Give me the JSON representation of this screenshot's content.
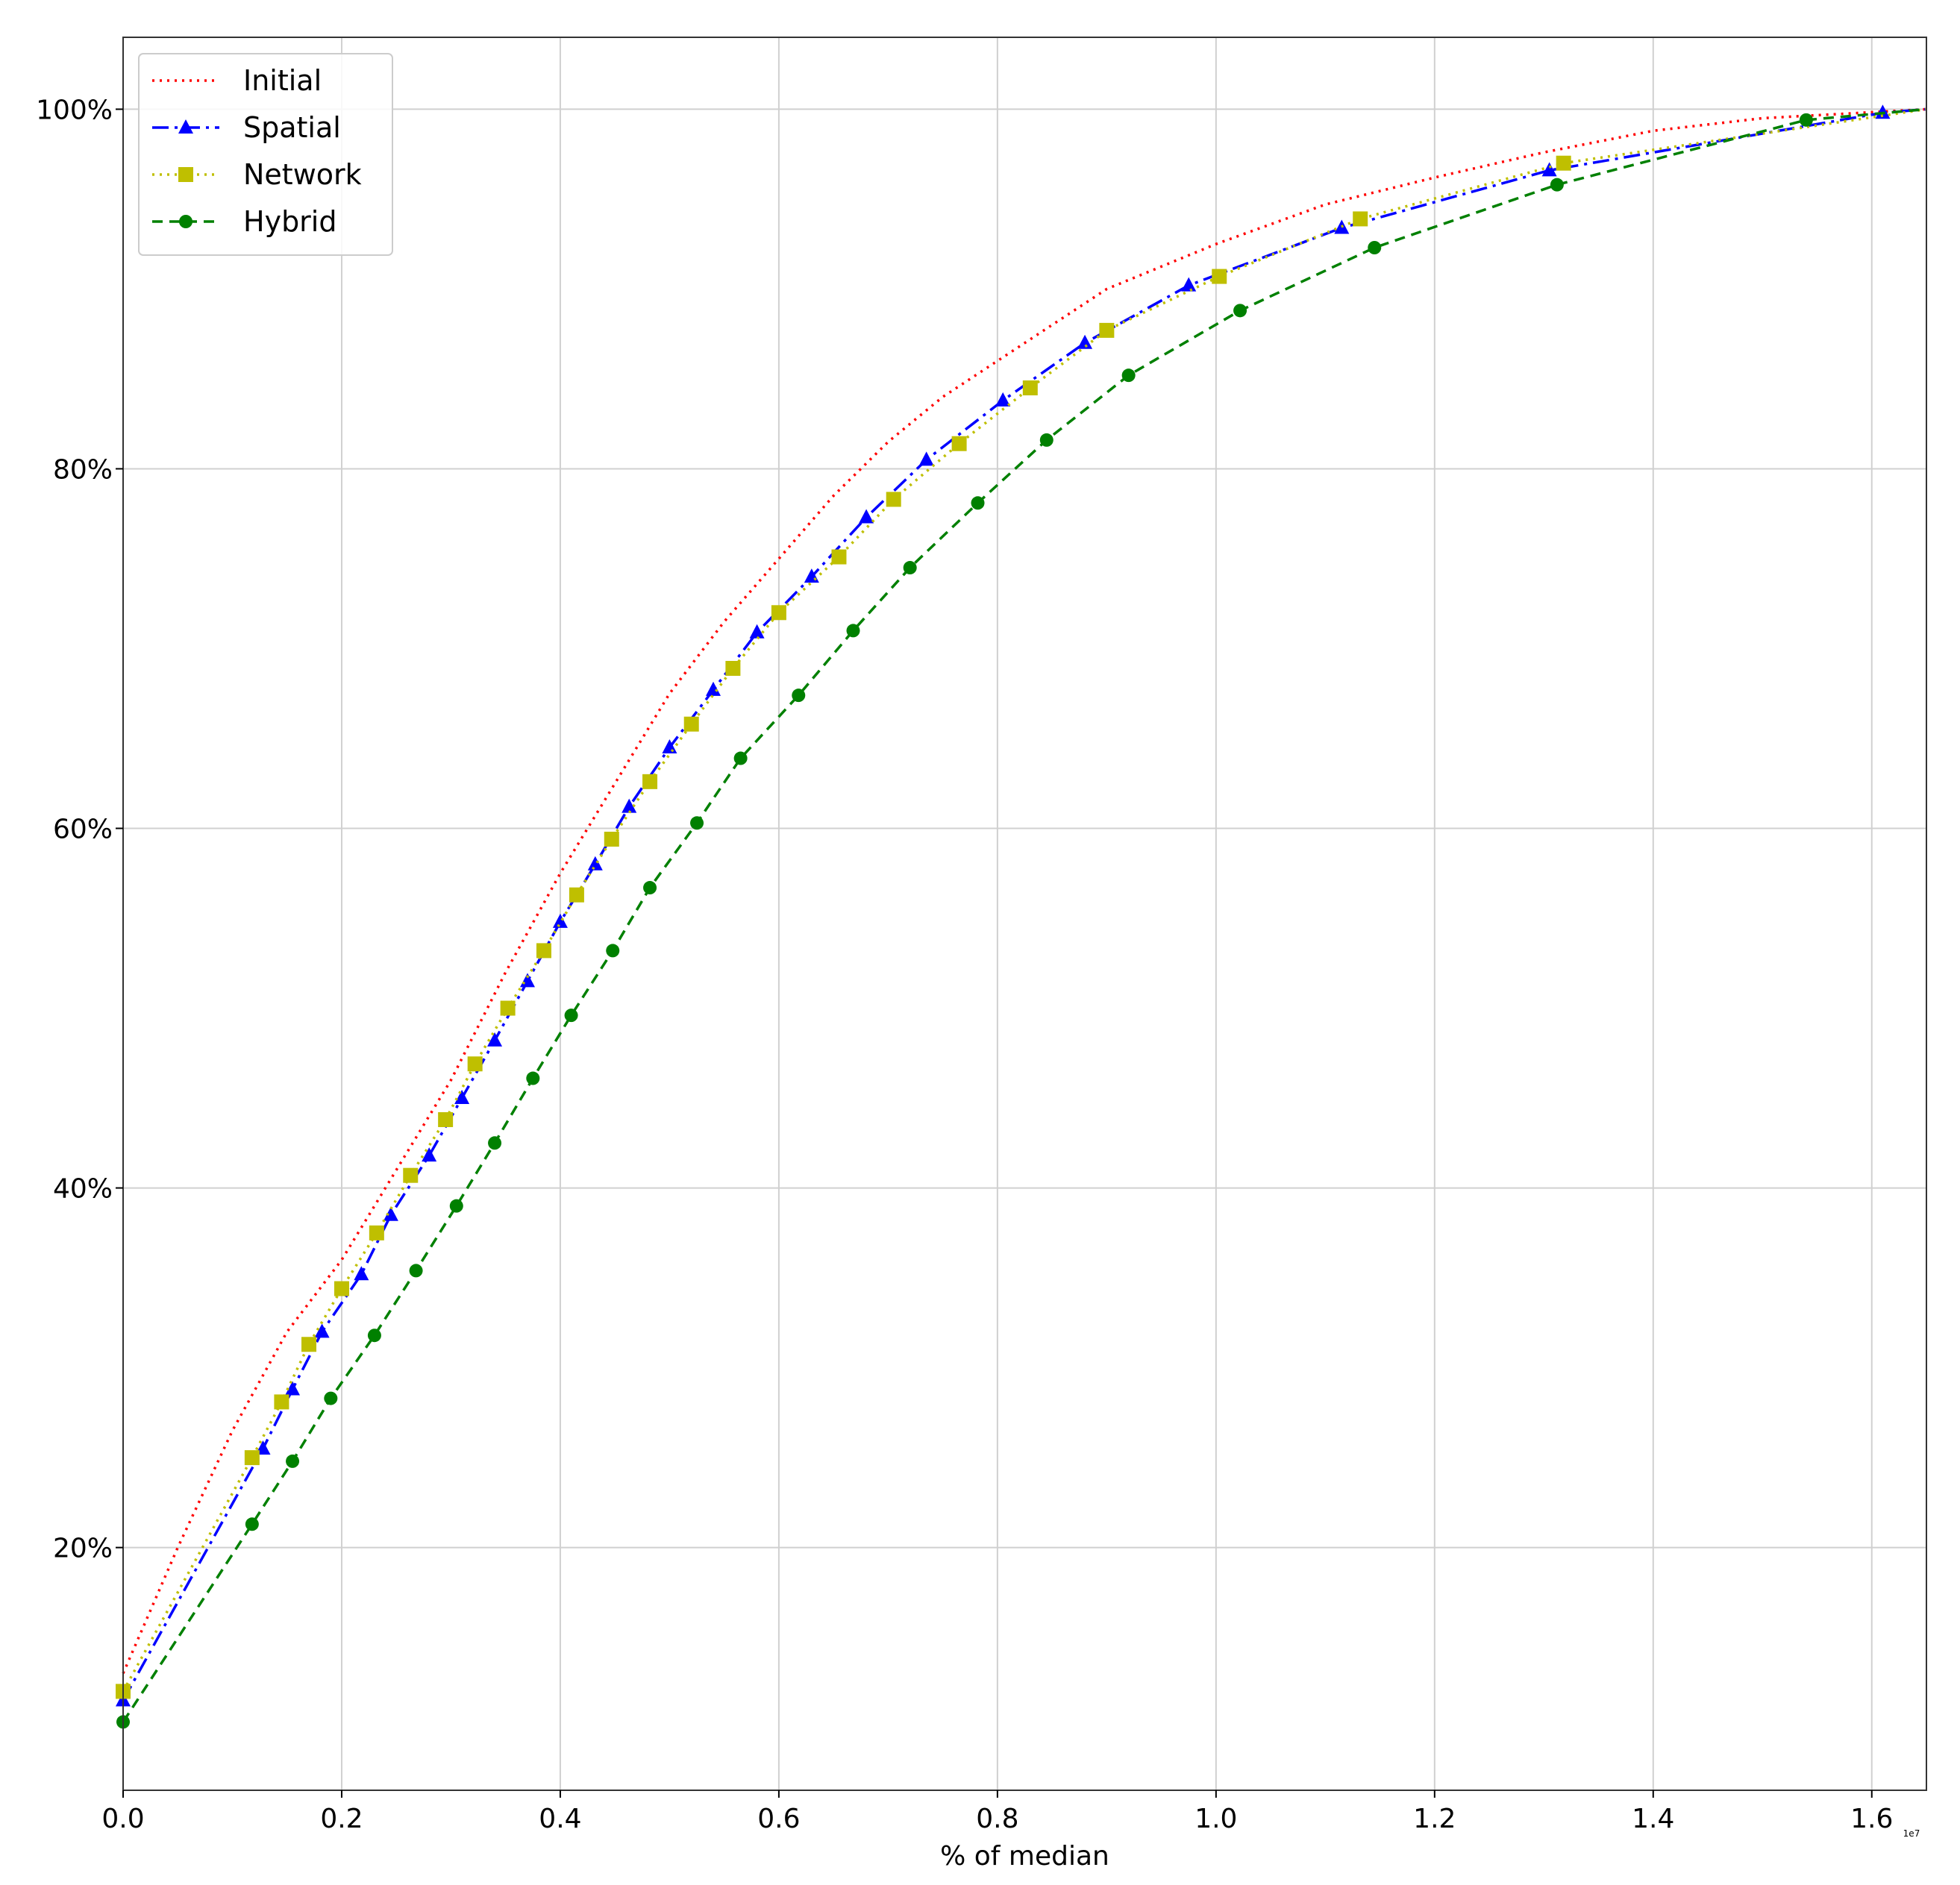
{
  "chart_data": {
    "type": "line",
    "xlabel": "% of median",
    "ylabel": "",
    "x_offset_label": "1e7",
    "xlim": [
      0,
      1.65
    ],
    "ylim": [
      0.065,
      1.04
    ],
    "xticks": [
      0.0,
      0.2,
      0.4,
      0.6,
      0.8,
      1.0,
      1.2,
      1.4,
      1.6
    ],
    "xtick_labels": [
      "0.0",
      "0.2",
      "0.4",
      "0.6",
      "0.8",
      "1.0",
      "1.2",
      "1.4",
      "1.6"
    ],
    "yticks": [
      0.2,
      0.4,
      0.6,
      0.8,
      1.0
    ],
    "ytick_labels": [
      "20%",
      "40%",
      "60%",
      "80%",
      "100%"
    ],
    "grid": true,
    "legend_position": "top-left",
    "series": [
      {
        "name": "Initial",
        "color": "#ff0000",
        "line_style": "dotted",
        "marker": "none",
        "x": [
          0.0,
          0.05,
          0.1,
          0.15,
          0.2,
          0.25,
          0.3,
          0.35,
          0.4,
          0.45,
          0.5,
          0.55,
          0.6,
          0.65,
          0.7,
          0.75,
          0.8,
          0.85,
          0.9,
          1.0,
          1.1,
          1.2,
          1.3,
          1.4,
          1.5,
          1.65
        ],
        "y": [
          0.13,
          0.2,
          0.265,
          0.32,
          0.36,
          0.41,
          0.46,
          0.52,
          0.575,
          0.625,
          0.675,
          0.715,
          0.75,
          0.785,
          0.815,
          0.84,
          0.86,
          0.88,
          0.9,
          0.925,
          0.947,
          0.962,
          0.976,
          0.988,
          0.995,
          1.0
        ]
      },
      {
        "name": "Spatial",
        "color": "#0000ff",
        "line_style": "dashdot",
        "marker": "triangle",
        "x": [
          0.0,
          0.128,
          0.155,
          0.182,
          0.218,
          0.245,
          0.28,
          0.31,
          0.34,
          0.37,
          0.4,
          0.432,
          0.463,
          0.5,
          0.54,
          0.58,
          0.63,
          0.68,
          0.735,
          0.805,
          0.88,
          0.975,
          1.115,
          1.305,
          1.61,
          1.65
        ],
        "y": [
          0.115,
          0.255,
          0.288,
          0.32,
          0.352,
          0.385,
          0.418,
          0.45,
          0.482,
          0.515,
          0.548,
          0.58,
          0.612,
          0.645,
          0.677,
          0.709,
          0.74,
          0.773,
          0.805,
          0.838,
          0.87,
          0.902,
          0.934,
          0.966,
          0.998,
          1.0
        ]
      },
      {
        "name": "Network",
        "color": "#bfbf00",
        "line_style": "dotted",
        "marker": "square",
        "x": [
          0.0,
          0.118,
          0.145,
          0.17,
          0.2,
          0.232,
          0.263,
          0.295,
          0.322,
          0.352,
          0.385,
          0.415,
          0.447,
          0.482,
          0.52,
          0.558,
          0.6,
          0.655,
          0.705,
          0.765,
          0.83,
          0.9,
          1.003,
          1.132,
          1.318,
          1.65
        ],
        "y": [
          0.12,
          0.25,
          0.281,
          0.313,
          0.344,
          0.375,
          0.407,
          0.438,
          0.469,
          0.5,
          0.532,
          0.563,
          0.594,
          0.626,
          0.658,
          0.689,
          0.72,
          0.751,
          0.783,
          0.814,
          0.845,
          0.877,
          0.907,
          0.939,
          0.97,
          1.0
        ]
      },
      {
        "name": "Hybrid",
        "color": "#008000",
        "line_style": "dashed",
        "marker": "circle",
        "x": [
          0.0,
          0.118,
          0.155,
          0.19,
          0.23,
          0.268,
          0.305,
          0.34,
          0.375,
          0.41,
          0.448,
          0.482,
          0.525,
          0.565,
          0.618,
          0.668,
          0.72,
          0.782,
          0.845,
          0.92,
          1.022,
          1.145,
          1.312,
          1.54,
          1.65
        ],
        "y": [
          0.103,
          0.213,
          0.248,
          0.283,
          0.318,
          0.354,
          0.39,
          0.425,
          0.461,
          0.496,
          0.532,
          0.567,
          0.603,
          0.639,
          0.674,
          0.71,
          0.745,
          0.781,
          0.816,
          0.852,
          0.888,
          0.923,
          0.958,
          0.994,
          1.0
        ]
      }
    ]
  }
}
